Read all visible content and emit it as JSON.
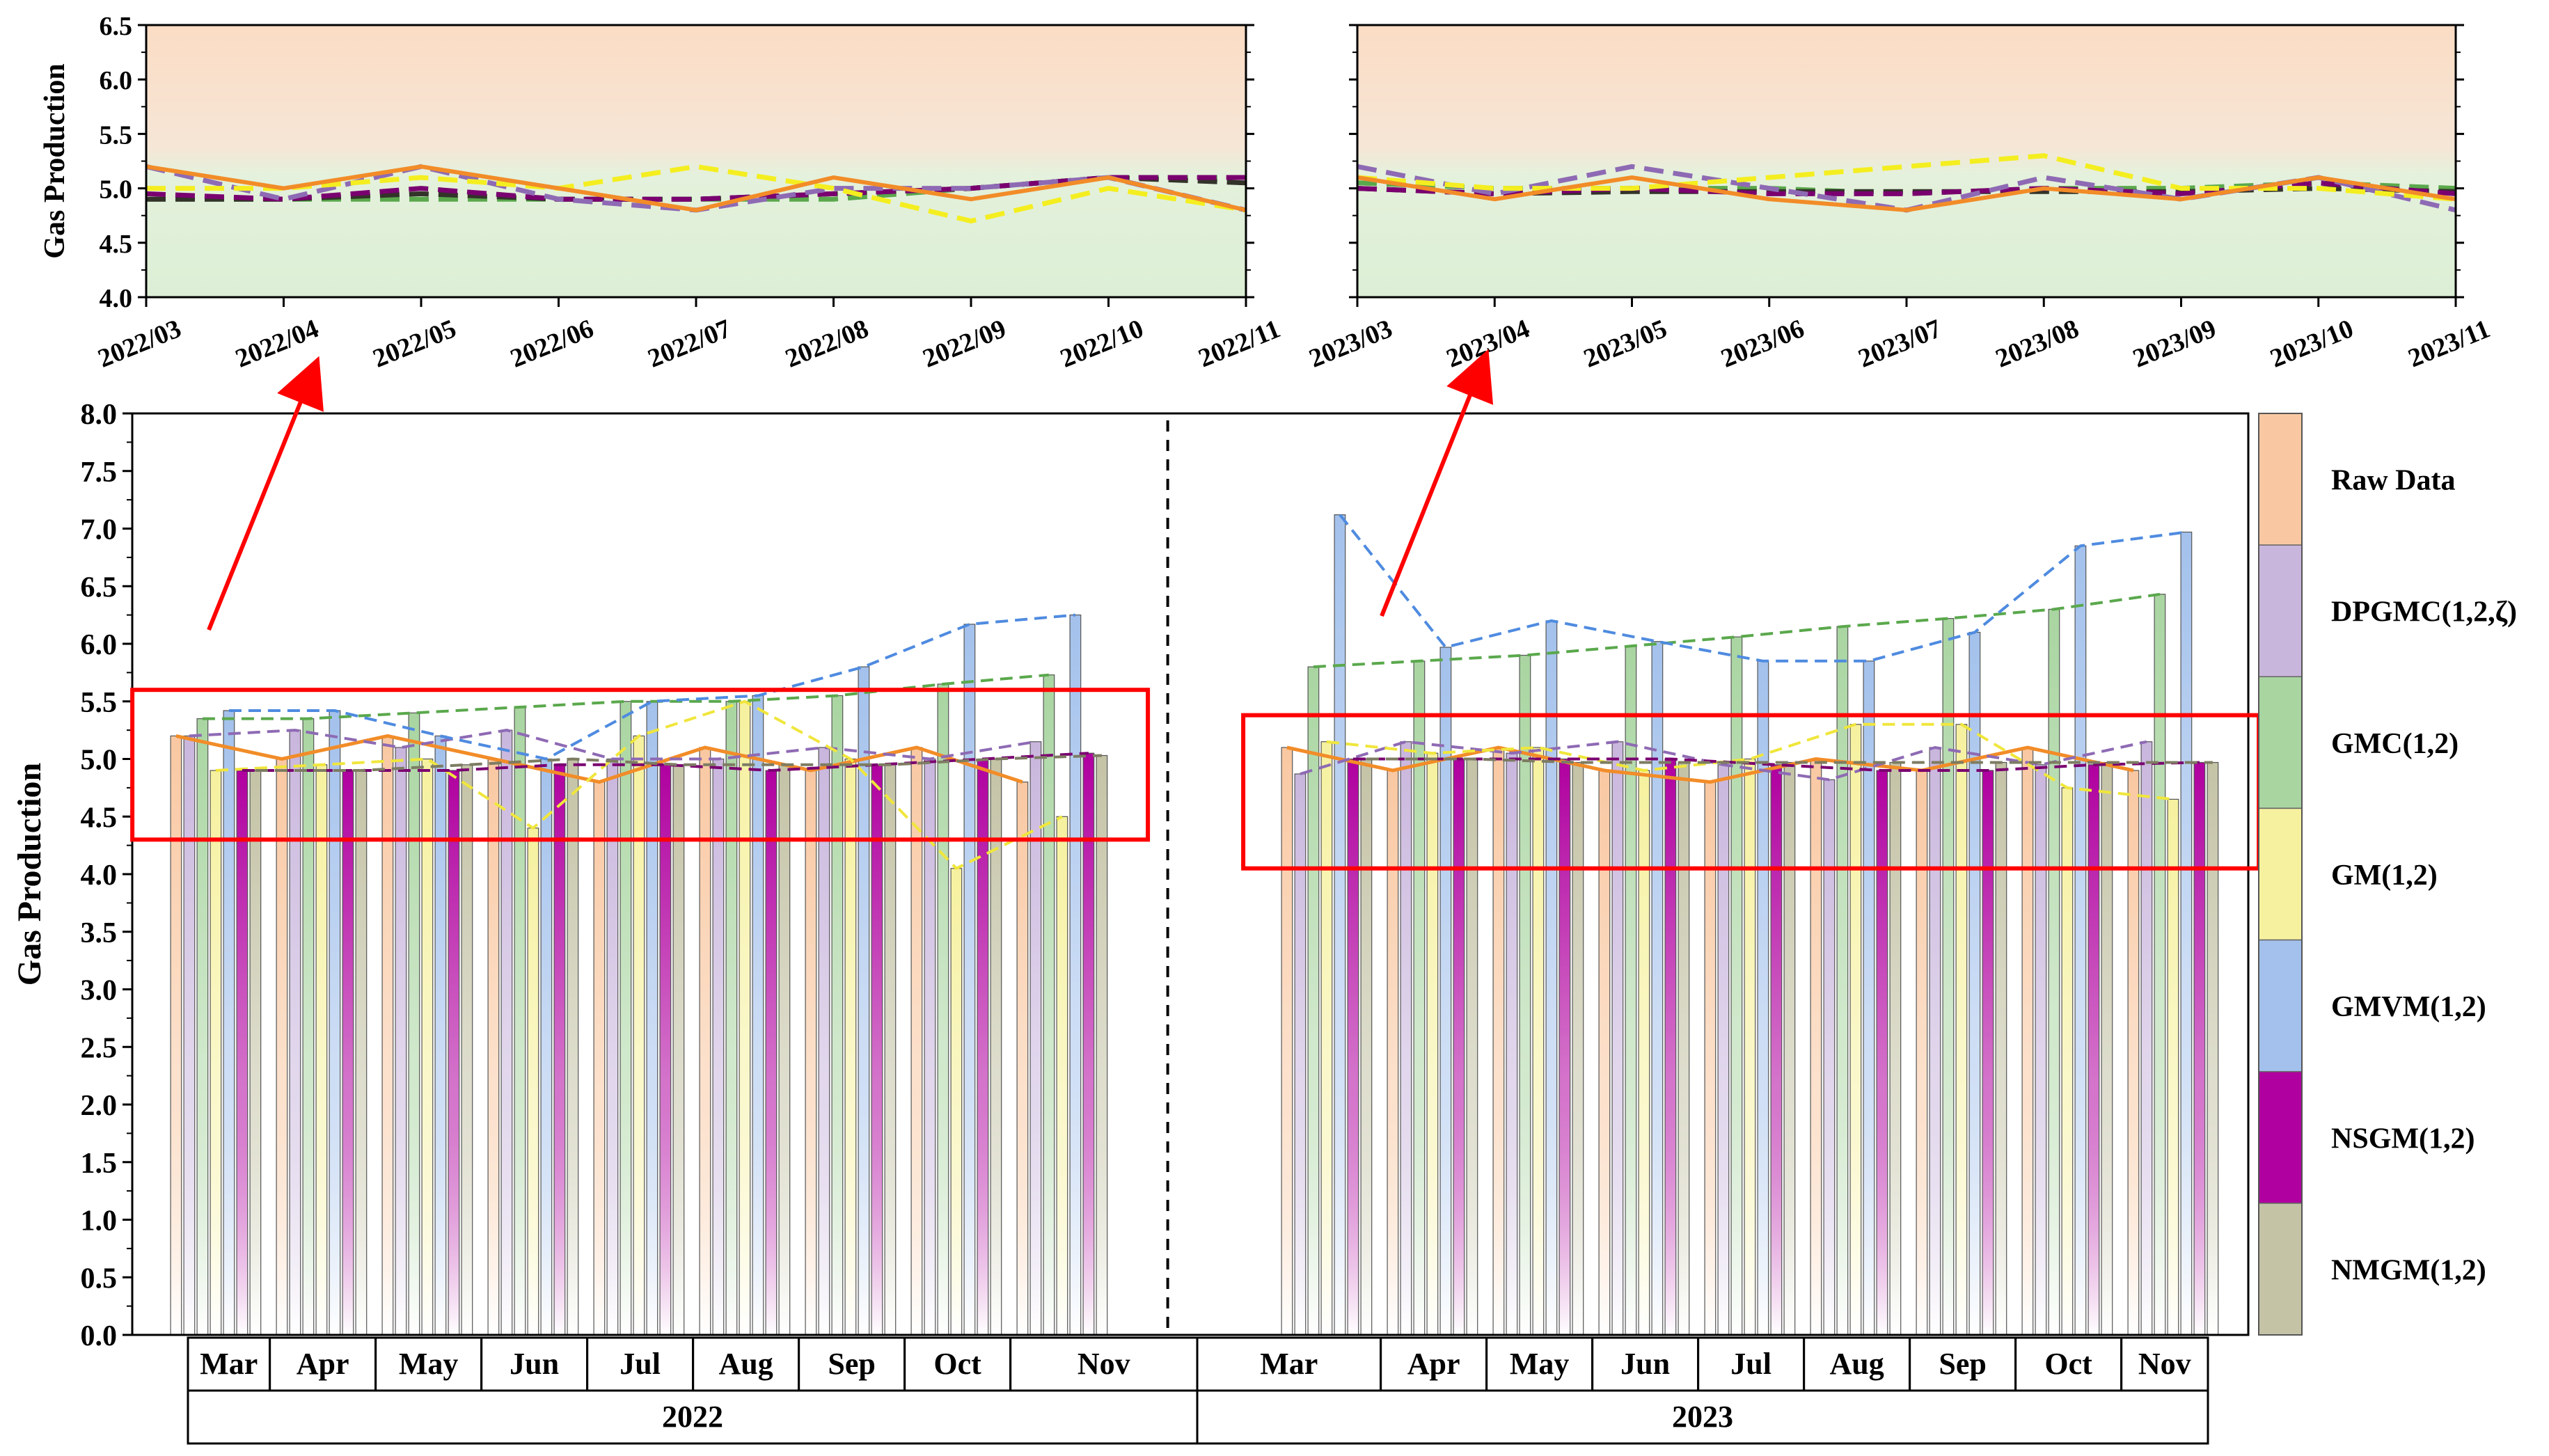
{
  "chart_data": [
    {
      "id": "inset-2022",
      "type": "line",
      "ylabel": "Gas Production",
      "ylim": [
        4.0,
        6.5
      ],
      "yticks": [
        4.0,
        4.5,
        5.0,
        5.5,
        6.0,
        6.5
      ],
      "ytick_labels": [
        "4.0",
        "4.5",
        "5.0",
        "5.5",
        "6.0",
        "6.5"
      ],
      "categories": [
        "2022/03",
        "2022/04",
        "2022/05",
        "2022/06",
        "2022/07",
        "2022/08",
        "2022/09",
        "2022/10",
        "2022/11"
      ],
      "background": {
        "upper": "#fbdcc4",
        "lower": "#dcefd5"
      },
      "series": [
        {
          "name": "Raw Data",
          "values": [
            5.2,
            5.0,
            5.2,
            5.0,
            4.8,
            5.1,
            4.9,
            5.1,
            4.8
          ]
        },
        {
          "name": "DPGMC(1,2,ζ)",
          "values": [
            5.2,
            4.9,
            5.2,
            4.9,
            4.8,
            5.0,
            5.0,
            5.1,
            4.8
          ]
        },
        {
          "name": "GMC(1,2)",
          "values": [
            4.9,
            4.9,
            4.9,
            4.9,
            4.9,
            4.9,
            5.0,
            5.1,
            5.1
          ]
        },
        {
          "name": "GM(1,2)",
          "values": [
            5.0,
            5.0,
            5.1,
            5.0,
            5.2,
            5.0,
            4.7,
            5.0,
            4.8
          ]
        },
        {
          "name": "NSGM(1,2)",
          "values": [
            4.95,
            4.9,
            5.0,
            4.9,
            4.9,
            4.95,
            5.0,
            5.1,
            5.1
          ]
        },
        {
          "name": "NMGM(1,2)",
          "values": [
            4.9,
            4.9,
            4.95,
            4.9,
            4.9,
            4.95,
            5.0,
            5.1,
            5.05
          ]
        }
      ]
    },
    {
      "id": "inset-2023",
      "type": "line",
      "ylabel": "",
      "ylim": [
        4.0,
        6.5
      ],
      "yticks": [
        4.0,
        4.5,
        5.0,
        5.5,
        6.0,
        6.5
      ],
      "ytick_labels": [],
      "categories": [
        "2023/03",
        "2023/04",
        "2023/05",
        "2023/06",
        "2023/07",
        "2023/08",
        "2023/09",
        "2023/10",
        "2023/11"
      ],
      "background": {
        "upper": "#fbdcc4",
        "lower": "#dcefd5"
      },
      "series": [
        {
          "name": "Raw Data",
          "values": [
            5.1,
            4.9,
            5.1,
            4.9,
            4.8,
            5.0,
            4.9,
            5.1,
            4.9
          ]
        },
        {
          "name": "DPGMC(1,2,ζ)",
          "values": [
            5.2,
            4.95,
            5.2,
            5.0,
            4.8,
            5.1,
            4.9,
            5.1,
            4.8
          ]
        },
        {
          "name": "GMC(1,2)",
          "values": [
            5.05,
            5.0,
            5.0,
            5.0,
            4.95,
            5.0,
            5.0,
            5.05,
            5.0
          ]
        },
        {
          "name": "GM(1,2)",
          "values": [
            5.1,
            5.0,
            5.0,
            5.1,
            5.2,
            5.3,
            5.0,
            5.0,
            4.9
          ]
        },
        {
          "name": "NSGM(1,2)",
          "values": [
            5.0,
            4.95,
            5.0,
            4.95,
            4.95,
            5.0,
            4.95,
            5.05,
            4.95
          ]
        },
        {
          "name": "NMGM(1,2)",
          "values": [
            5.0,
            4.95,
            4.97,
            4.97,
            4.97,
            4.97,
            4.97,
            5.0,
            4.97
          ]
        }
      ]
    },
    {
      "id": "main-bars",
      "type": "bar",
      "ylabel": "Gas Production",
      "ylim": [
        0.0,
        8.0
      ],
      "yticks": [
        0.0,
        0.5,
        1.0,
        1.5,
        2.0,
        2.5,
        3.0,
        3.5,
        4.0,
        4.5,
        5.0,
        5.5,
        6.0,
        6.5,
        7.0,
        7.5,
        8.0
      ],
      "ytick_labels": [
        "0.0",
        "0.5",
        "1.0",
        "1.5",
        "2.0",
        "2.5",
        "3.0",
        "3.5",
        "4.0",
        "4.5",
        "5.0",
        "5.5",
        "6.0",
        "6.5",
        "7.0",
        "7.5",
        "8.0"
      ],
      "groups": [
        {
          "label": "2022",
          "months": [
            "Mar",
            "Apr",
            "May",
            "Jun",
            "Jul",
            "Aug",
            "Sep",
            "Oct",
            "Nov"
          ]
        },
        {
          "label": "2023",
          "months": [
            "Mar",
            "Apr",
            "May",
            "Jun",
            "Jul",
            "Aug",
            "Sep",
            "Oct",
            "Nov"
          ]
        }
      ],
      "series": [
        {
          "name": "Raw Data",
          "color": "#f9c8a2",
          "line": "#f28c28",
          "values": [
            5.2,
            5.0,
            5.2,
            5.0,
            4.8,
            5.1,
            4.9,
            5.1,
            4.8,
            5.1,
            4.9,
            5.1,
            4.9,
            4.8,
            5.0,
            4.9,
            5.1,
            4.9
          ]
        },
        {
          "name": "DPGMC(1,2,ζ)",
          "color": "#c9b6dd",
          "line": "#8e6ab4",
          "values": [
            5.2,
            5.25,
            5.1,
            5.25,
            5.0,
            5.0,
            5.1,
            5.0,
            5.15,
            4.87,
            5.15,
            5.05,
            5.15,
            4.95,
            4.82,
            5.1,
            4.95,
            5.15
          ]
        },
        {
          "name": "GMC(1,2)",
          "color": "#a9d5a1",
          "line": "#5aa84c",
          "values": [
            5.35,
            5.35,
            5.4,
            5.45,
            5.5,
            5.5,
            5.55,
            5.65,
            5.73,
            5.8,
            5.85,
            5.9,
            5.98,
            6.06,
            6.15,
            6.22,
            6.3,
            6.43
          ]
        },
        {
          "name": "GM(1,2)",
          "color": "#f6f19f",
          "line": "#f0e63c",
          "values": [
            4.9,
            4.95,
            5.0,
            4.4,
            5.2,
            5.5,
            5.0,
            4.05,
            4.5,
            5.15,
            5.05,
            5.1,
            4.9,
            5.0,
            5.3,
            5.3,
            4.75,
            4.65
          ]
        },
        {
          "name": "GMVM(1,2)",
          "color": "#a3c1ec",
          "line": "#4f8be0",
          "values": [
            5.42,
            5.42,
            5.2,
            5.0,
            5.5,
            5.55,
            5.8,
            6.17,
            6.25,
            7.12,
            5.97,
            6.2,
            6.02,
            5.85,
            5.85,
            6.1,
            6.85,
            6.97
          ]
        },
        {
          "name": "NSGM(1,2)",
          "color": "#b0009f",
          "line": "#7a0070",
          "values": [
            4.9,
            4.9,
            4.9,
            4.95,
            4.95,
            4.9,
            4.95,
            5.0,
            5.05,
            5.0,
            5.0,
            5.0,
            5.0,
            4.95,
            4.9,
            4.9,
            4.95,
            4.97
          ]
        },
        {
          "name": "NMGM(1,2)",
          "color": "#c4c3a6",
          "line": "#7d7c62",
          "values": [
            4.9,
            4.9,
            4.95,
            5.0,
            4.95,
            4.95,
            4.95,
            5.0,
            5.03,
            5.0,
            5.0,
            4.97,
            4.97,
            4.97,
            4.97,
            4.97,
            4.97,
            4.97
          ]
        }
      ],
      "highlight_boxes": [
        {
          "group": "2022",
          "ymin": 4.3,
          "ymax": 5.6
        },
        {
          "group": "2023",
          "ymin": 4.05,
          "ymax": 5.38
        }
      ]
    }
  ],
  "legend": {
    "placement": "right",
    "items": [
      {
        "label": "Raw Data",
        "color": "#f9c8a2"
      },
      {
        "label": "DPGMC(1,2,ζ)",
        "color": "#c9b6dd"
      },
      {
        "label": "GMC(1,2)",
        "color": "#a9d5a1"
      },
      {
        "label": "GM(1,2)",
        "color": "#f6f19f"
      },
      {
        "label": "GMVM(1,2)",
        "color": "#a3c1ec"
      },
      {
        "label": "NSGM(1,2)",
        "color": "#b0009f"
      },
      {
        "label": "NMGM(1,2)",
        "color": "#c4c3a6"
      }
    ]
  },
  "colors": {
    "highlight": "#ff0000",
    "arrow": "#ff0000",
    "divider": "#000000"
  }
}
